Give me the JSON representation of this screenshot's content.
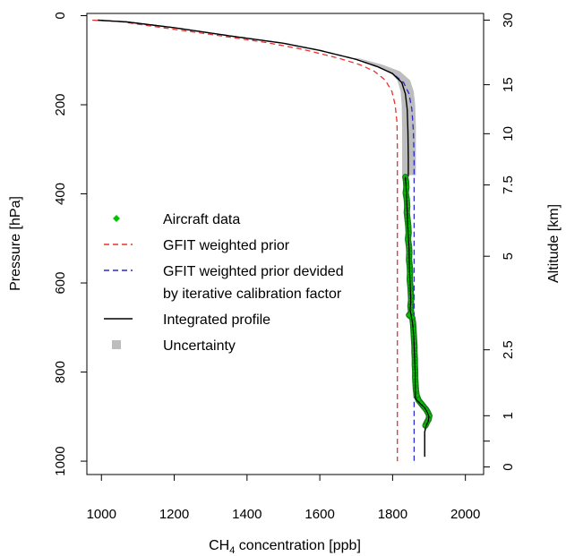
{
  "chart_data": {
    "type": "line",
    "xlabel_main": "CH",
    "xlabel_sub": "4",
    "xlabel_rest": " concentration [ppb]",
    "ylabel": "Pressure [hPa]",
    "y2label": "Altitude [km]",
    "xlim": [
      960,
      2050
    ],
    "ylim": [
      1030,
      -5
    ],
    "y_reversed": true,
    "x_ticks": [
      1000,
      1200,
      1400,
      1600,
      1800,
      2000
    ],
    "y_ticks": [
      0,
      200,
      400,
      600,
      800,
      1000
    ],
    "altitude_ticks": [
      {
        "label": "30",
        "pressure": 10
      },
      {
        "label": "15",
        "pressure": 155
      },
      {
        "label": "10",
        "pressure": 265
      },
      {
        "label": "7.5",
        "pressure": 380
      },
      {
        "label": "5",
        "pressure": 540
      },
      {
        "label": "2.5",
        "pressure": 750
      },
      {
        "label": "1",
        "pressure": 898
      },
      {
        "label": "",
        "pressure": 955
      },
      {
        "label": "0",
        "pressure": 1013
      }
    ],
    "grid": false,
    "legend_position": "center-left",
    "colors": {
      "aircraft": "#00c400",
      "aircraft_outline": "#1a7a1a",
      "gfit_prior": "#e8332d",
      "gfit_scaled": "#2a2ad0",
      "integrated": "#000000",
      "uncertainty": "#bdbdbd"
    },
    "legend": [
      {
        "label": "Aircraft data",
        "style": "diamond",
        "color": "#00c400"
      },
      {
        "label": "GFIT weighted prior",
        "style": "dashed",
        "color": "#e8332d"
      },
      {
        "label": "GFIT weighted prior devided",
        "label2": "by iterative calibration factor",
        "style": "dashed",
        "color": "#2a2ad0"
      },
      {
        "label": "Integrated profile",
        "style": "solid",
        "color": "#000000"
      },
      {
        "label": "Uncertainty",
        "style": "square",
        "color": "#bdbdbd"
      }
    ],
    "series": [
      {
        "name": "GFIT weighted prior",
        "points": [
          [
            975,
            10
          ],
          [
            1050,
            13
          ],
          [
            1150,
            25
          ],
          [
            1300,
            42
          ],
          [
            1450,
            60
          ],
          [
            1550,
            75
          ],
          [
            1650,
            95
          ],
          [
            1710,
            110
          ],
          [
            1750,
            125
          ],
          [
            1780,
            145
          ],
          [
            1798,
            170
          ],
          [
            1807,
            200
          ],
          [
            1812,
            240
          ],
          [
            1813,
            300
          ],
          [
            1813,
            400
          ],
          [
            1813,
            600
          ],
          [
            1813,
            800
          ],
          [
            1813,
            1000
          ]
        ]
      },
      {
        "name": "GFIT weighted prior devided by iterative calibration factor",
        "points": [
          [
            990,
            10
          ],
          [
            1070,
            14
          ],
          [
            1200,
            27
          ],
          [
            1350,
            45
          ],
          [
            1500,
            62
          ],
          [
            1600,
            78
          ],
          [
            1700,
            98
          ],
          [
            1760,
            115
          ],
          [
            1800,
            130
          ],
          [
            1830,
            150
          ],
          [
            1845,
            175
          ],
          [
            1853,
            210
          ],
          [
            1857,
            260
          ],
          [
            1859,
            320
          ],
          [
            1859,
            400
          ],
          [
            1859,
            600
          ],
          [
            1859,
            800
          ],
          [
            1859,
            1000
          ]
        ]
      },
      {
        "name": "Integrated profile",
        "points": [
          [
            990,
            10
          ],
          [
            1070,
            14
          ],
          [
            1200,
            27
          ],
          [
            1350,
            45
          ],
          [
            1500,
            62
          ],
          [
            1600,
            78
          ],
          [
            1700,
            98
          ],
          [
            1760,
            115
          ],
          [
            1800,
            130
          ],
          [
            1825,
            150
          ],
          [
            1835,
            175
          ],
          [
            1840,
            210
          ],
          [
            1842,
            260
          ],
          [
            1843,
            320
          ],
          [
            1843,
            360
          ],
          [
            1835,
            362
          ],
          [
            1837,
            380
          ],
          [
            1838,
            400
          ],
          [
            1840,
            440
          ],
          [
            1842,
            480
          ],
          [
            1845,
            520
          ],
          [
            1846,
            560
          ],
          [
            1848,
            600
          ],
          [
            1850,
            640
          ],
          [
            1848,
            660
          ],
          [
            1855,
            690
          ],
          [
            1858,
            720
          ],
          [
            1860,
            760
          ],
          [
            1862,
            800
          ],
          [
            1862,
            830
          ],
          [
            1863,
            860
          ],
          [
            1875,
            870
          ],
          [
            1888,
            880
          ],
          [
            1895,
            890
          ],
          [
            1900,
            900
          ],
          [
            1898,
            910
          ],
          [
            1892,
            920
          ],
          [
            1888,
            935
          ],
          [
            1888,
            960
          ],
          [
            1888,
            990
          ]
        ]
      },
      {
        "name": "Aircraft data",
        "points": [
          [
            1835,
            362
          ],
          [
            1837,
            372
          ],
          [
            1838,
            385
          ],
          [
            1836,
            398
          ],
          [
            1839,
            412
          ],
          [
            1840,
            428
          ],
          [
            1839,
            442
          ],
          [
            1841,
            458
          ],
          [
            1843,
            472
          ],
          [
            1844,
            488
          ],
          [
            1842,
            502
          ],
          [
            1845,
            518
          ],
          [
            1846,
            532
          ],
          [
            1845,
            548
          ],
          [
            1847,
            562
          ],
          [
            1848,
            578
          ],
          [
            1847,
            592
          ],
          [
            1849,
            608
          ],
          [
            1850,
            622
          ],
          [
            1851,
            638
          ],
          [
            1849,
            652
          ],
          [
            1851,
            666
          ],
          [
            1845,
            672
          ],
          [
            1854,
            678
          ],
          [
            1856,
            690
          ],
          [
            1857,
            702
          ],
          [
            1858,
            716
          ],
          [
            1859,
            730
          ],
          [
            1860,
            742
          ],
          [
            1860,
            756
          ],
          [
            1861,
            770
          ],
          [
            1861,
            784
          ],
          [
            1862,
            798
          ],
          [
            1862,
            812
          ],
          [
            1863,
            826
          ],
          [
            1864,
            840
          ],
          [
            1866,
            852
          ],
          [
            1871,
            863
          ],
          [
            1878,
            870
          ],
          [
            1885,
            877
          ],
          [
            1892,
            884
          ],
          [
            1897,
            891
          ],
          [
            1901,
            898
          ],
          [
            1899,
            906
          ],
          [
            1894,
            913
          ],
          [
            1890,
            920
          ]
        ]
      }
    ],
    "uncertainty_band": [
      {
        "p": 95,
        "lo": 1700,
        "hi": 1704
      },
      {
        "p": 110,
        "lo": 1748,
        "hi": 1772
      },
      {
        "p": 125,
        "lo": 1790,
        "hi": 1820
      },
      {
        "p": 145,
        "lo": 1813,
        "hi": 1848
      },
      {
        "p": 170,
        "lo": 1822,
        "hi": 1858
      },
      {
        "p": 200,
        "lo": 1825,
        "hi": 1862
      },
      {
        "p": 250,
        "lo": 1826,
        "hi": 1864
      },
      {
        "p": 300,
        "lo": 1826,
        "hi": 1864
      },
      {
        "p": 358,
        "lo": 1826,
        "hi": 1864
      }
    ]
  }
}
